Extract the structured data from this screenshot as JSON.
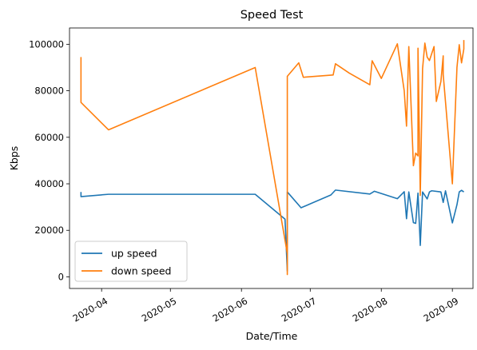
{
  "chart_data": {
    "type": "line",
    "title": "Speed Test",
    "xlabel": "Date/Time",
    "ylabel": "Kbps",
    "x_type": "date",
    "xlim": [
      "2020-03-18",
      "2020-09-10"
    ],
    "ylim": [
      -5000,
      107000
    ],
    "x_ticks": [
      "2020-04-01",
      "2020-05-01",
      "2020-06-01",
      "2020-07-01",
      "2020-08-01",
      "2020-09-01"
    ],
    "x_tick_labels": [
      "2020-04",
      "2020-05",
      "2020-06",
      "2020-07",
      "2020-08",
      "2020-09"
    ],
    "y_ticks": [
      0,
      20000,
      40000,
      60000,
      80000,
      100000
    ],
    "y_tick_labels": [
      "0",
      "20000",
      "40000",
      "60000",
      "80000",
      "100000"
    ],
    "grid": false,
    "legend_position": "lower-left",
    "series": [
      {
        "name": "up speed",
        "color": "#1f77b4",
        "points": [
          [
            "2020-03-23",
            36500
          ],
          [
            "2020-03-23",
            34500
          ],
          [
            "2020-04-04",
            35500
          ],
          [
            "2020-06-07",
            35500
          ],
          [
            "2020-06-20",
            24800
          ],
          [
            "2020-06-21",
            2500
          ],
          [
            "2020-06-21",
            36500
          ],
          [
            "2020-06-27",
            29700
          ],
          [
            "2020-07-10",
            35200
          ],
          [
            "2020-07-12",
            37300
          ],
          [
            "2020-07-27",
            35600
          ],
          [
            "2020-07-29",
            36800
          ],
          [
            "2020-08-08",
            33600
          ],
          [
            "2020-08-11",
            36600
          ],
          [
            "2020-08-12",
            25000
          ],
          [
            "2020-08-13",
            36500
          ],
          [
            "2020-08-15",
            23300
          ],
          [
            "2020-08-16",
            23000
          ],
          [
            "2020-08-17",
            36000
          ],
          [
            "2020-08-18",
            13500
          ],
          [
            "2020-08-19",
            36500
          ],
          [
            "2020-08-21",
            33500
          ],
          [
            "2020-08-22",
            36500
          ],
          [
            "2020-08-23",
            37000
          ],
          [
            "2020-08-27",
            36500
          ],
          [
            "2020-08-28",
            32000
          ],
          [
            "2020-08-29",
            37000
          ],
          [
            "2020-09-01",
            23200
          ],
          [
            "2020-09-03",
            31000
          ],
          [
            "2020-09-04",
            36500
          ],
          [
            "2020-09-05",
            37200
          ],
          [
            "2020-09-06",
            36500
          ]
        ]
      },
      {
        "name": "down speed",
        "color": "#ff7f0e",
        "points": [
          [
            "2020-03-23",
            94500
          ],
          [
            "2020-03-23",
            75000
          ],
          [
            "2020-04-04",
            63200
          ],
          [
            "2020-06-07",
            90000
          ],
          [
            "2020-06-21",
            10000
          ],
          [
            "2020-06-21",
            1000
          ],
          [
            "2020-06-21",
            86200
          ],
          [
            "2020-06-26",
            92000
          ],
          [
            "2020-06-28",
            85800
          ],
          [
            "2020-07-11",
            86800
          ],
          [
            "2020-07-12",
            91600
          ],
          [
            "2020-07-18",
            87600
          ],
          [
            "2020-07-27",
            82600
          ],
          [
            "2020-07-28",
            92900
          ],
          [
            "2020-08-01",
            85300
          ],
          [
            "2020-08-08",
            100200
          ],
          [
            "2020-08-11",
            80000
          ],
          [
            "2020-08-12",
            64800
          ],
          [
            "2020-08-13",
            99000
          ],
          [
            "2020-08-15",
            47800
          ],
          [
            "2020-08-16",
            53200
          ],
          [
            "2020-08-17",
            52000
          ],
          [
            "2020-08-17",
            98300
          ],
          [
            "2020-08-18",
            35000
          ],
          [
            "2020-08-19",
            89500
          ],
          [
            "2020-08-20",
            100500
          ],
          [
            "2020-08-21",
            94500
          ],
          [
            "2020-08-22",
            93000
          ],
          [
            "2020-08-24",
            99000
          ],
          [
            "2020-08-25",
            75400
          ],
          [
            "2020-08-27",
            84000
          ],
          [
            "2020-08-28",
            95000
          ],
          [
            "2020-08-28",
            87000
          ],
          [
            "2020-09-01",
            40000
          ],
          [
            "2020-09-03",
            90000
          ],
          [
            "2020-09-04",
            99800
          ],
          [
            "2020-09-05",
            92000
          ],
          [
            "2020-09-06",
            98000
          ],
          [
            "2020-09-06",
            101800
          ]
        ]
      }
    ]
  }
}
